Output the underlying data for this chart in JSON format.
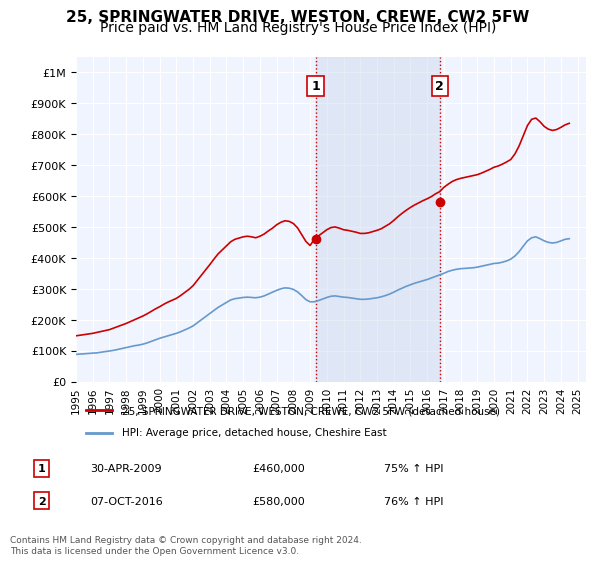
{
  "title": "25, SPRINGWATER DRIVE, WESTON, CREWE, CW2 5FW",
  "subtitle": "Price paid vs. HM Land Registry's House Price Index (HPI)",
  "title_fontsize": 11,
  "subtitle_fontsize": 10,
  "ylabel_ticks": [
    "£0",
    "£100K",
    "£200K",
    "£300K",
    "£400K",
    "£500K",
    "£600K",
    "£700K",
    "£800K",
    "£900K",
    "£1M"
  ],
  "ytick_values": [
    0,
    100000,
    200000,
    300000,
    400000,
    500000,
    600000,
    700000,
    800000,
    900000,
    1000000
  ],
  "ylim": [
    0,
    1050000
  ],
  "xlim_start": 1995.0,
  "xlim_end": 2025.5,
  "background_color": "#ffffff",
  "plot_bg_color": "#f0f4ff",
  "grid_color": "#ffffff",
  "red_line_color": "#cc0000",
  "blue_line_color": "#6699cc",
  "vline_color": "#cc0000",
  "vline_style": ":",
  "marker1_x": 2009.33,
  "marker1_y": 460000,
  "marker2_x": 2016.75,
  "marker2_y": 580000,
  "annotation1_label": "1",
  "annotation2_label": "2",
  "legend_line1": "25, SPRINGWATER DRIVE, WESTON, CREWE, CW2 5FW (detached house)",
  "legend_line2": "HPI: Average price, detached house, Cheshire East",
  "table_row1": [
    "1",
    "30-APR-2009",
    "£460,000",
    "75% ↑ HPI"
  ],
  "table_row2": [
    "2",
    "07-OCT-2016",
    "£580,000",
    "76% ↑ HPI"
  ],
  "footnote": "Contains HM Land Registry data © Crown copyright and database right 2024.\nThis data is licensed under the Open Government Licence v3.0.",
  "hpi_data": {
    "years": [
      1995.0,
      1995.25,
      1995.5,
      1995.75,
      1996.0,
      1996.25,
      1996.5,
      1996.75,
      1997.0,
      1997.25,
      1997.5,
      1997.75,
      1998.0,
      1998.25,
      1998.5,
      1998.75,
      1999.0,
      1999.25,
      1999.5,
      1999.75,
      2000.0,
      2000.25,
      2000.5,
      2000.75,
      2001.0,
      2001.25,
      2001.5,
      2001.75,
      2002.0,
      2002.25,
      2002.5,
      2002.75,
      2003.0,
      2003.25,
      2003.5,
      2003.75,
      2004.0,
      2004.25,
      2004.5,
      2004.75,
      2005.0,
      2005.25,
      2005.5,
      2005.75,
      2006.0,
      2006.25,
      2006.5,
      2006.75,
      2007.0,
      2007.25,
      2007.5,
      2007.75,
      2008.0,
      2008.25,
      2008.5,
      2008.75,
      2009.0,
      2009.25,
      2009.5,
      2009.75,
      2010.0,
      2010.25,
      2010.5,
      2010.75,
      2011.0,
      2011.25,
      2011.5,
      2011.75,
      2012.0,
      2012.25,
      2012.5,
      2012.75,
      2013.0,
      2013.25,
      2013.5,
      2013.75,
      2014.0,
      2014.25,
      2014.5,
      2014.75,
      2015.0,
      2015.25,
      2015.5,
      2015.75,
      2016.0,
      2016.25,
      2016.5,
      2016.75,
      2017.0,
      2017.25,
      2017.5,
      2017.75,
      2018.0,
      2018.25,
      2018.5,
      2018.75,
      2019.0,
      2019.25,
      2019.5,
      2019.75,
      2020.0,
      2020.25,
      2020.5,
      2020.75,
      2021.0,
      2021.25,
      2021.5,
      2021.75,
      2022.0,
      2022.25,
      2022.5,
      2022.75,
      2023.0,
      2023.25,
      2023.5,
      2023.75,
      2024.0,
      2024.25,
      2024.5
    ],
    "values": [
      88000,
      89000,
      90000,
      91000,
      92000,
      93000,
      95000,
      97000,
      99000,
      101000,
      104000,
      107000,
      110000,
      113000,
      116000,
      118000,
      121000,
      125000,
      130000,
      135000,
      140000,
      144000,
      148000,
      152000,
      156000,
      161000,
      167000,
      173000,
      180000,
      190000,
      200000,
      210000,
      220000,
      230000,
      240000,
      248000,
      256000,
      264000,
      268000,
      270000,
      272000,
      273000,
      272000,
      271000,
      273000,
      277000,
      283000,
      289000,
      295000,
      300000,
      303000,
      302000,
      298000,
      290000,
      278000,
      265000,
      258000,
      258000,
      262000,
      267000,
      272000,
      276000,
      277000,
      275000,
      273000,
      272000,
      270000,
      268000,
      266000,
      266000,
      267000,
      269000,
      271000,
      274000,
      278000,
      283000,
      289000,
      296000,
      302000,
      308000,
      313000,
      318000,
      322000,
      326000,
      330000,
      335000,
      340000,
      345000,
      350000,
      356000,
      360000,
      363000,
      365000,
      366000,
      367000,
      368000,
      370000,
      373000,
      376000,
      379000,
      382000,
      383000,
      386000,
      390000,
      396000,
      406000,
      420000,
      438000,
      455000,
      465000,
      468000,
      462000,
      455000,
      450000,
      448000,
      450000,
      455000,
      460000,
      462000
    ]
  },
  "property_data": {
    "years": [
      1995.0,
      1995.25,
      1995.5,
      1995.75,
      1996.0,
      1996.25,
      1996.5,
      1996.75,
      1997.0,
      1997.25,
      1997.5,
      1997.75,
      1998.0,
      1998.25,
      1998.5,
      1998.75,
      1999.0,
      1999.25,
      1999.5,
      1999.75,
      2000.0,
      2000.25,
      2000.5,
      2000.75,
      2001.0,
      2001.25,
      2001.5,
      2001.75,
      2002.0,
      2002.25,
      2002.5,
      2002.75,
      2003.0,
      2003.25,
      2003.5,
      2003.75,
      2004.0,
      2004.25,
      2004.5,
      2004.75,
      2005.0,
      2005.25,
      2005.5,
      2005.75,
      2006.0,
      2006.25,
      2006.5,
      2006.75,
      2007.0,
      2007.25,
      2007.5,
      2007.75,
      2008.0,
      2008.25,
      2008.5,
      2008.75,
      2009.0,
      2009.25,
      2009.5,
      2009.75,
      2010.0,
      2010.25,
      2010.5,
      2010.75,
      2011.0,
      2011.25,
      2011.5,
      2011.75,
      2012.0,
      2012.25,
      2012.5,
      2012.75,
      2013.0,
      2013.25,
      2013.5,
      2013.75,
      2014.0,
      2014.25,
      2014.5,
      2014.75,
      2015.0,
      2015.25,
      2015.5,
      2015.75,
      2016.0,
      2016.25,
      2016.5,
      2016.75,
      2017.0,
      2017.25,
      2017.5,
      2017.75,
      2018.0,
      2018.25,
      2018.5,
      2018.75,
      2019.0,
      2019.25,
      2019.5,
      2019.75,
      2020.0,
      2020.25,
      2020.5,
      2020.75,
      2021.0,
      2021.25,
      2021.5,
      2021.75,
      2022.0,
      2022.25,
      2022.5,
      2022.75,
      2023.0,
      2023.25,
      2023.5,
      2023.75,
      2024.0,
      2024.25,
      2024.5
    ],
    "values": [
      148000,
      150000,
      152000,
      154000,
      156000,
      159000,
      162000,
      165000,
      168000,
      173000,
      178000,
      183000,
      188000,
      194000,
      200000,
      206000,
      212000,
      219000,
      227000,
      235000,
      242000,
      250000,
      257000,
      263000,
      269000,
      278000,
      288000,
      298000,
      310000,
      327000,
      344000,
      361000,
      378000,
      396000,
      413000,
      426000,
      439000,
      452000,
      460000,
      464000,
      468000,
      470000,
      468000,
      465000,
      470000,
      477000,
      487000,
      496000,
      507000,
      515000,
      520000,
      518000,
      511000,
      497000,
      475000,
      453000,
      440000,
      460000,
      471000,
      481000,
      491000,
      498000,
      500000,
      496000,
      491000,
      489000,
      486000,
      483000,
      479000,
      479000,
      481000,
      485000,
      489000,
      494000,
      502000,
      510000,
      521000,
      533000,
      544000,
      554000,
      563000,
      571000,
      578000,
      585000,
      591000,
      598000,
      607000,
      614000,
      628000,
      638000,
      647000,
      653000,
      657000,
      660000,
      663000,
      666000,
      669000,
      674000,
      680000,
      686000,
      693000,
      697000,
      703000,
      710000,
      718000,
      736000,
      762000,
      795000,
      828000,
      848000,
      852000,
      840000,
      825000,
      816000,
      812000,
      815000,
      822000,
      830000,
      835000
    ]
  },
  "xtick_years": [
    1995,
    1996,
    1997,
    1998,
    1999,
    2000,
    2001,
    2002,
    2003,
    2004,
    2005,
    2006,
    2007,
    2008,
    2009,
    2010,
    2011,
    2012,
    2013,
    2014,
    2015,
    2016,
    2017,
    2018,
    2019,
    2020,
    2021,
    2022,
    2023,
    2024,
    2025
  ]
}
